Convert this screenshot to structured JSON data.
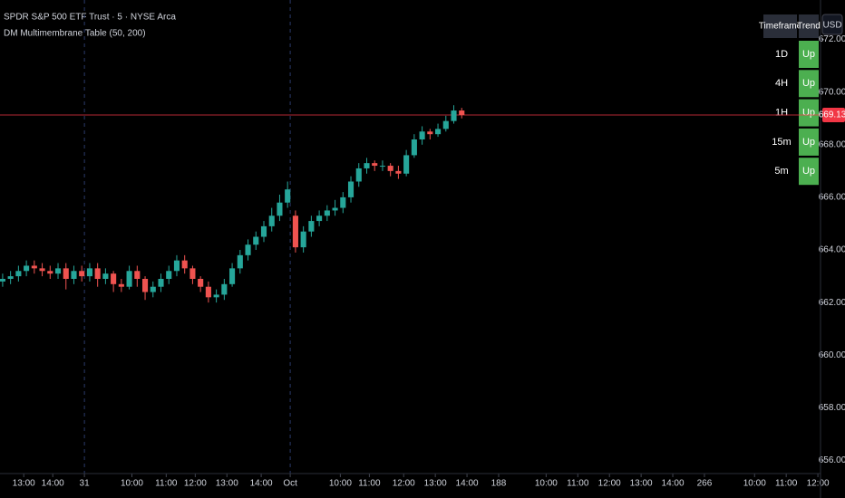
{
  "chart_data": {
    "type": "candlestick",
    "title": "SPDR S&P 500 ETF Trust · 5 · NYSE Arca",
    "subtitle": "DM Multimembrane Table (50, 200)",
    "currency": "USD",
    "up_color": "#26a69a",
    "down_color": "#ef5350",
    "last_price": 669.13,
    "last_price_color": "#f23645",
    "x": [
      0,
      3,
      6,
      9,
      12,
      15,
      18,
      21,
      24,
      27,
      30,
      33,
      36,
      39,
      42,
      45,
      48,
      51,
      54,
      57,
      60,
      63,
      66,
      69,
      72,
      75,
      78,
      81,
      84,
      87,
      90,
      93,
      96,
      99,
      102,
      105,
      108,
      111,
      114,
      117,
      120,
      123,
      126,
      129,
      132,
      135,
      138,
      141,
      144,
      147,
      150,
      153,
      156,
      159,
      162,
      165,
      168,
      171,
      174
    ],
    "open": [
      662.8,
      662.9,
      663.0,
      663.2,
      663.4,
      663.3,
      663.2,
      663.1,
      663.3,
      662.9,
      663.2,
      663.0,
      663.3,
      662.9,
      663.1,
      662.7,
      662.6,
      663.2,
      662.9,
      662.4,
      662.6,
      662.9,
      663.2,
      663.6,
      663.3,
      662.9,
      662.6,
      662.2,
      662.3,
      662.7,
      663.3,
      663.8,
      664.2,
      664.5,
      664.9,
      665.3,
      665.8,
      665.3,
      664.1,
      664.7,
      665.1,
      665.3,
      665.5,
      665.6,
      666.0,
      666.6,
      667.1,
      667.3,
      667.2,
      667.2,
      667.0,
      666.9,
      667.6,
      668.2,
      668.5,
      668.4,
      668.6,
      668.9,
      669.3
    ],
    "high": [
      663.1,
      663.2,
      663.4,
      663.6,
      663.6,
      663.5,
      663.4,
      663.5,
      663.5,
      663.4,
      663.4,
      663.5,
      663.5,
      663.3,
      663.2,
      662.9,
      663.4,
      663.4,
      663.0,
      662.8,
      663.1,
      663.4,
      663.8,
      663.8,
      663.4,
      663.0,
      662.8,
      662.5,
      662.9,
      663.5,
      664.0,
      664.4,
      664.7,
      665.1,
      665.6,
      666.1,
      666.6,
      665.5,
      664.9,
      665.3,
      665.5,
      665.7,
      665.9,
      666.2,
      666.8,
      667.3,
      667.5,
      667.4,
      667.4,
      667.3,
      667.2,
      667.8,
      668.4,
      668.7,
      668.6,
      668.8,
      669.1,
      669.5,
      669.4
    ],
    "low": [
      662.6,
      662.7,
      662.8,
      663.0,
      663.1,
      663.0,
      662.9,
      662.9,
      662.5,
      662.7,
      662.8,
      662.8,
      662.6,
      662.7,
      662.4,
      662.4,
      662.5,
      662.6,
      662.1,
      662.2,
      662.4,
      662.7,
      663.0,
      663.1,
      662.7,
      662.4,
      662.0,
      662.0,
      662.1,
      662.6,
      663.1,
      663.6,
      664.0,
      664.3,
      664.7,
      665.1,
      665.6,
      663.9,
      663.9,
      664.5,
      664.9,
      665.1,
      665.3,
      665.4,
      665.8,
      666.4,
      666.9,
      667.0,
      667.0,
      666.8,
      666.7,
      666.8,
      667.5,
      668.0,
      668.2,
      668.3,
      668.5,
      668.8,
      669.0
    ],
    "close": [
      662.9,
      663.0,
      663.2,
      663.4,
      663.3,
      663.2,
      663.1,
      663.3,
      662.9,
      663.2,
      663.0,
      663.3,
      662.9,
      663.1,
      662.7,
      662.6,
      663.2,
      662.9,
      662.4,
      662.6,
      662.9,
      663.2,
      663.6,
      663.3,
      662.9,
      662.6,
      662.2,
      662.3,
      662.7,
      663.3,
      663.8,
      664.2,
      664.5,
      664.9,
      665.3,
      665.8,
      666.3,
      664.1,
      664.7,
      665.1,
      665.3,
      665.5,
      665.6,
      666.0,
      666.6,
      667.1,
      667.3,
      667.2,
      667.2,
      667.0,
      666.9,
      667.6,
      668.2,
      668.5,
      668.4,
      668.6,
      668.9,
      669.3,
      669.13
    ],
    "xlim": [
      -1,
      310
    ],
    "xticks": [
      {
        "value": 8,
        "label": "13:00"
      },
      {
        "value": 19,
        "label": "14:00"
      },
      31,
      {
        "value": 49,
        "label": "10:00"
      },
      {
        "value": 62,
        "label": "11:00"
      },
      {
        "value": 73,
        "label": "12:00"
      },
      {
        "value": 85,
        "label": "13:00"
      },
      {
        "value": 98,
        "label": "14:00"
      },
      {
        "value": 109,
        "label": "Oct"
      },
      {
        "value": 128,
        "label": "10:00"
      },
      {
        "value": 139,
        "label": "11:00"
      },
      {
        "value": 152,
        "label": "12:00"
      },
      {
        "value": 164,
        "label": "13:00"
      },
      {
        "value": 176,
        "label": "14:00"
      },
      188,
      {
        "value": 206,
        "label": "10:00"
      },
      {
        "value": 218,
        "label": "11:00"
      },
      {
        "value": 230,
        "label": "12:00"
      },
      {
        "value": 242,
        "label": "13:00"
      },
      {
        "value": 254,
        "label": "14:00"
      },
      266,
      {
        "value": 285,
        "label": "10:00"
      },
      {
        "value": 297,
        "label": "11:00"
      },
      {
        "value": 309,
        "label": "12:00"
      }
    ],
    "ylim": [
      655.5,
      673.5
    ],
    "yticks": [
      {
        "value": 656,
        "label": "656.00"
      },
      {
        "value": 658,
        "label": "658.00"
      },
      {
        "value": 660,
        "label": "660.00"
      },
      {
        "value": 662,
        "label": "662.00"
      },
      {
        "value": 664,
        "label": "664.00"
      },
      {
        "value": 666,
        "label": "666.00"
      },
      {
        "value": 668,
        "label": "668.00"
      },
      {
        "value": 670,
        "label": "670.00"
      },
      {
        "value": 672,
        "label": "672.00"
      }
    ]
  },
  "table": {
    "columns": [
      "Timeframe",
      "Trend"
    ],
    "rows": [
      [
        "1D",
        "Up"
      ],
      [
        "4H",
        "Up"
      ],
      [
        "1H",
        "Up"
      ],
      [
        "15m",
        "Up"
      ],
      [
        "5m",
        "Up"
      ]
    ]
  }
}
